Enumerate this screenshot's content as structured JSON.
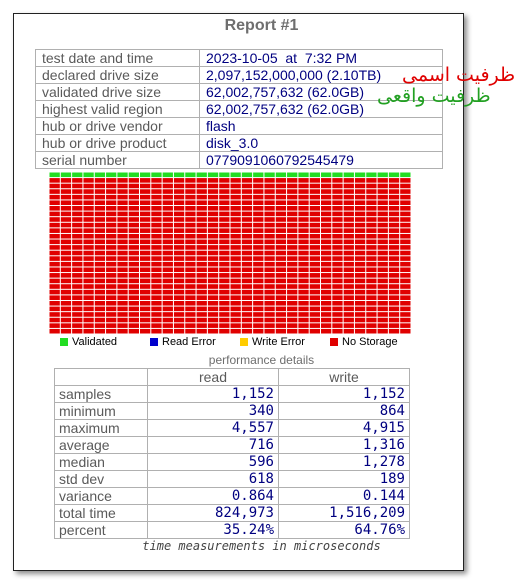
{
  "report": {
    "title": "Report #1",
    "rows": [
      {
        "label": "test date and time",
        "value": "2023-10-05  at  7:32 PM"
      },
      {
        "label": "declared drive size",
        "value": "2,097,152,000,000 (2.10TB)"
      },
      {
        "label": "validated drive size",
        "value": "62,002,757,632 (62.0GB)"
      },
      {
        "label": "highest valid region",
        "value": "62,002,757,632 (62.0GB)"
      },
      {
        "label": "hub or drive vendor",
        "value": "flash"
      },
      {
        "label": "hub or drive product",
        "value": "disk_3.0"
      },
      {
        "label": "serial number",
        "value": "0779091060792545479"
      }
    ]
  },
  "annotations": {
    "nominal_capacity": "ظرفیت اسمی",
    "real_capacity": "ظرفیت واقعی",
    "nominal_color": "#e00000",
    "real_color": "#22a022"
  },
  "map": {
    "columns": 32,
    "rows": 29,
    "validated_cells": 32,
    "colors": {
      "validated": "#22dd22",
      "read_error": "#0000cc",
      "write_error": "#ffcc00",
      "no_storage": "#e00000"
    }
  },
  "legend": {
    "validated": "Validated",
    "read_error": "Read Error",
    "write_error": "Write Error",
    "no_storage": "No Storage"
  },
  "performance": {
    "caption": "performance details",
    "col_read": "read",
    "col_write": "write",
    "rows": [
      {
        "label": "samples",
        "read": "1,152",
        "write": "1,152"
      },
      {
        "label": "minimum",
        "read": "340",
        "write": "864"
      },
      {
        "label": "maximum",
        "read": "4,557",
        "write": "4,915"
      },
      {
        "label": "average",
        "read": "716",
        "write": "1,316"
      },
      {
        "label": "median",
        "read": "596",
        "write": "1,278"
      },
      {
        "label": "std dev",
        "read": "618",
        "write": "189"
      },
      {
        "label": "variance",
        "read": "0.864",
        "write": "0.144"
      },
      {
        "label": "total time",
        "read": "824,973",
        "write": "1,516,209"
      },
      {
        "label": "percent",
        "read": "35.24%",
        "write": "64.76%"
      }
    ],
    "footer": "time measurements in microseconds"
  }
}
